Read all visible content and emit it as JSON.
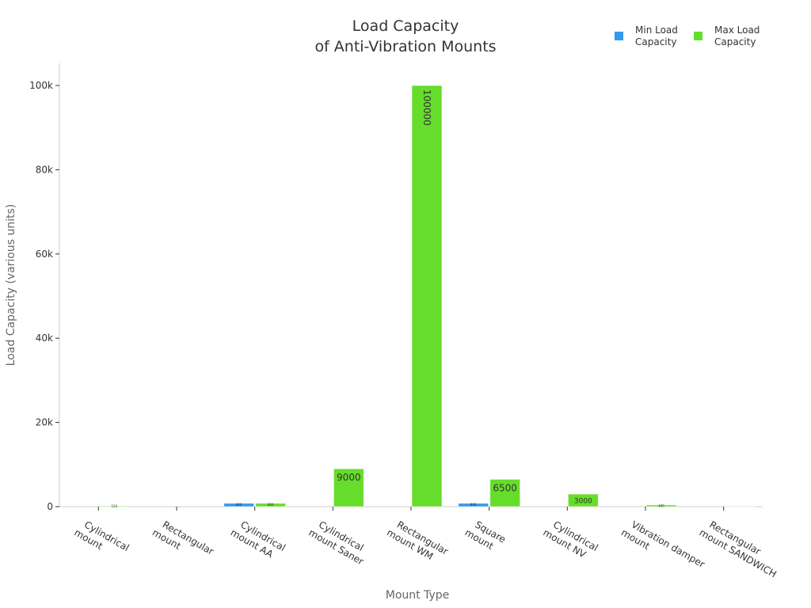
{
  "chart_data": {
    "type": "bar",
    "title_lines": [
      "Load Capacity",
      "of Anti-Vibration Mounts"
    ],
    "xlabel": "Mount Type",
    "ylabel": "Load Capacity (various units)",
    "ylim": [
      0,
      105000
    ],
    "yticks": [
      0,
      20000,
      40000,
      60000,
      80000,
      100000
    ],
    "ytick_labels": [
      "0",
      "20k",
      "40k",
      "60k",
      "80k",
      "100k"
    ],
    "grid": false,
    "legend_position": "top-right",
    "categories": [
      [
        "Cylindrical",
        "mount"
      ],
      [
        "Rectangular",
        "mount"
      ],
      [
        "Cylindrical",
        "mount AA"
      ],
      [
        "Cylindrical",
        "mount Saner"
      ],
      [
        "Rectangular",
        "mount WM"
      ],
      [
        "Square",
        "mount"
      ],
      [
        "Cylindrical",
        "mount NV"
      ],
      [
        "Vibration damper",
        "mount"
      ],
      [
        "Rectangular",
        "mount SANDWICH"
      ]
    ],
    "series": [
      {
        "name": "Min Load Capacity",
        "legend_lines": [
          "Min Load",
          "Capacity"
        ],
        "color": "#3399ee",
        "values": [
          0,
          0,
          800,
          0,
          0,
          800,
          0,
          0,
          0
        ],
        "labels": [
          "",
          "",
          "800",
          "",
          "",
          "800",
          "",
          "",
          ""
        ]
      },
      {
        "name": "Max Load Capacity",
        "legend_lines": [
          "Max Load",
          "Capacity"
        ],
        "color": "#66dd2a",
        "values": [
          150,
          0,
          800,
          9000,
          100000,
          6500,
          3000,
          400,
          30
        ],
        "labels": [
          "150",
          "",
          "800",
          "9000",
          "100000",
          "6500",
          "3000",
          "400",
          ""
        ]
      }
    ]
  }
}
